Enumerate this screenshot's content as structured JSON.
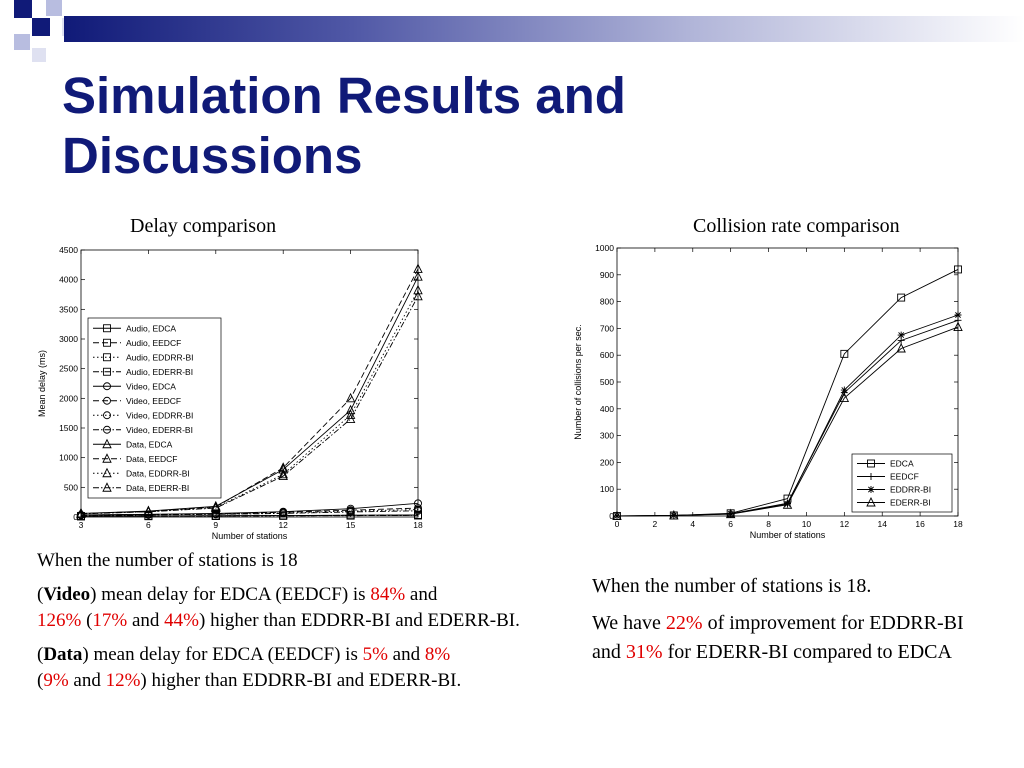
{
  "slide": {
    "title_line1": "Simulation Results and",
    "title_line2": "Discussions",
    "accent_color": "#101a78"
  },
  "left_caption": "Delay comparison",
  "right_caption": "Collision rate comparison",
  "left_text": {
    "line1": "When the number of stations is 18",
    "p2": {
      "open": "(",
      "label": "Video",
      "t1": ") mean delay for EDCA (EEDCF) is ",
      "v1": "84%",
      "t2": " and",
      "v2": "126%",
      "t3": " (",
      "v3": "17%",
      "t4": " and ",
      "v4": "44%",
      "t5": ") higher than EDDRR-BI and EDERR-BI."
    },
    "p3": {
      "open": "(",
      "label": "Data",
      "t1": ")  mean delay for EDCA (EEDCF) is ",
      "v1": "5%",
      "t2": " and ",
      "v2": "8%",
      "t3": "(",
      "v3": "9%",
      "t4": " and ",
      "v4": "12%",
      "t5": ") higher than EDDRR-BI and EDERR-BI."
    }
  },
  "right_text": {
    "line1": "When the number of stations is 18.",
    "t1": "We have ",
    "v1": "22%",
    "t2": " of  improvement for EDDRR-BI and ",
    "v2": "31%",
    "t3": " for EDERR-BI compared to EDCA"
  },
  "chart_data": [
    {
      "type": "line",
      "title": "Delay comparison",
      "xlabel": "Number of stations",
      "ylabel": "Mean delay (ms)",
      "x": [
        3,
        6,
        9,
        12,
        15,
        18
      ],
      "xlim": [
        3,
        18
      ],
      "ylim": [
        0,
        4500
      ],
      "xticks": [
        3,
        6,
        9,
        12,
        15,
        18
      ],
      "yticks": [
        0,
        500,
        1000,
        1500,
        2000,
        2500,
        3000,
        3500,
        4000,
        4500
      ],
      "legend_position": "bottom-left",
      "series": [
        {
          "name": "Audio, EDCA",
          "marker": "square",
          "dash": "solid",
          "values": [
            15,
            18,
            22,
            25,
            30,
            35
          ]
        },
        {
          "name": "Audio, EEDCF",
          "marker": "square",
          "dash": "dashed",
          "values": [
            14,
            17,
            20,
            24,
            28,
            32
          ]
        },
        {
          "name": "Audio, EDDRR-BI",
          "marker": "square",
          "dash": "dotted",
          "values": [
            12,
            15,
            18,
            22,
            25,
            28
          ]
        },
        {
          "name": "Audio, EDERR-BI",
          "marker": "square",
          "dash": "dashdot",
          "values": [
            11,
            14,
            17,
            20,
            23,
            26
          ]
        },
        {
          "name": "Video, EDCA",
          "marker": "circle",
          "dash": "solid",
          "values": [
            35,
            45,
            60,
            90,
            140,
            230
          ]
        },
        {
          "name": "Video, EEDCF",
          "marker": "circle",
          "dash": "dashed",
          "values": [
            33,
            42,
            55,
            80,
            115,
            150
          ]
        },
        {
          "name": "Video, EDDRR-BI",
          "marker": "circle",
          "dash": "dotted",
          "values": [
            30,
            38,
            48,
            65,
            100,
            125
          ]
        },
        {
          "name": "Video, EDERR-BI",
          "marker": "circle",
          "dash": "dashdot",
          "values": [
            28,
            35,
            45,
            60,
            85,
            105
          ]
        },
        {
          "name": "Data, EDCA",
          "marker": "triangle",
          "dash": "solid",
          "values": [
            60,
            100,
            180,
            800,
            1800,
            4050
          ]
        },
        {
          "name": "Data, EEDCF",
          "marker": "triangle",
          "dash": "dashed",
          "values": [
            58,
            95,
            170,
            830,
            2000,
            4180
          ]
        },
        {
          "name": "Data, EDDRR-BI",
          "marker": "triangle",
          "dash": "dotted",
          "values": [
            55,
            90,
            160,
            720,
            1720,
            3820
          ]
        },
        {
          "name": "Data, EDERR-BI",
          "marker": "triangle",
          "dash": "dashdot",
          "values": [
            52,
            88,
            150,
            690,
            1650,
            3720
          ]
        }
      ]
    },
    {
      "type": "line",
      "title": "Collision rate comparison",
      "xlabel": "Number of stations",
      "ylabel": "Number of collisions per sec.",
      "x": [
        0,
        3,
        6,
        9,
        12,
        15,
        18
      ],
      "xlim": [
        0,
        18
      ],
      "ylim": [
        0,
        1000
      ],
      "xticks": [
        0,
        2,
        4,
        6,
        8,
        10,
        12,
        14,
        16,
        18
      ],
      "yticks": [
        0,
        100,
        200,
        300,
        400,
        500,
        600,
        700,
        800,
        900,
        1000
      ],
      "legend_position": "bottom-right",
      "series": [
        {
          "name": "EDCA",
          "marker": "square",
          "dash": "solid",
          "values": [
            0,
            2,
            10,
            65,
            605,
            815,
            920
          ]
        },
        {
          "name": "EEDCF",
          "marker": "plus",
          "dash": "solid",
          "values": [
            0,
            2,
            8,
            48,
            460,
            655,
            730
          ]
        },
        {
          "name": "EDDRR-BI",
          "marker": "star",
          "dash": "solid",
          "values": [
            0,
            2,
            8,
            45,
            470,
            675,
            750
          ]
        },
        {
          "name": "EDERR-BI",
          "marker": "triangle",
          "dash": "solid",
          "values": [
            0,
            2,
            7,
            42,
            440,
            625,
            705
          ]
        }
      ]
    }
  ]
}
